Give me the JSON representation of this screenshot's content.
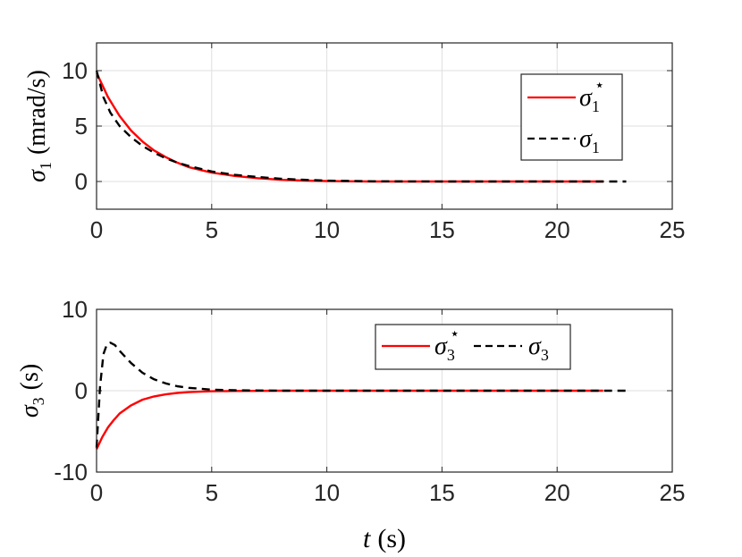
{
  "chart_data": [
    {
      "type": "line",
      "ylabel": "σ₁ (mrad/s)",
      "xlim": [
        0,
        25
      ],
      "ylim": [
        -2.5,
        12.5
      ],
      "xticks": [
        "0",
        "5",
        "10",
        "15",
        "20",
        "25"
      ],
      "yticks": [
        "0",
        "5",
        "10"
      ],
      "grid": true,
      "legend_placement": "top-right",
      "series": [
        {
          "name": "σ₁*",
          "color": "#ff0000",
          "style": "solid",
          "x": [
            0,
            0.5,
            1,
            1.5,
            2,
            2.5,
            3,
            3.5,
            4,
            5,
            6,
            7,
            8,
            9,
            10,
            12,
            15,
            18,
            22
          ],
          "y": [
            9.8,
            7.6,
            5.9,
            4.6,
            3.6,
            2.8,
            2.2,
            1.7,
            1.3,
            0.8,
            0.5,
            0.3,
            0.15,
            0.08,
            0.04,
            0.0,
            0.0,
            0.0,
            0.0
          ]
        },
        {
          "name": "σ₁",
          "color": "#000000",
          "style": "dashed",
          "x": [
            0,
            0.3,
            0.6,
            1,
            1.5,
            2,
            2.5,
            3,
            3.5,
            4,
            5,
            6,
            7,
            8,
            9,
            10,
            12,
            15,
            18,
            23
          ],
          "y": [
            10.0,
            7.6,
            6.2,
            5.0,
            4.0,
            3.2,
            2.6,
            2.1,
            1.7,
            1.4,
            0.9,
            0.6,
            0.4,
            0.25,
            0.15,
            0.08,
            0.02,
            0.0,
            0.0,
            0.0
          ]
        }
      ]
    },
    {
      "type": "line",
      "ylabel": "σ₃ (s)",
      "xlabel": "t (s)",
      "xlim": [
        0,
        25
      ],
      "ylim": [
        -10,
        10
      ],
      "xticks": [
        "0",
        "5",
        "10",
        "15",
        "20",
        "25"
      ],
      "yticks": [
        "-10",
        "0",
        "10"
      ],
      "grid": true,
      "legend_placement": "top-right",
      "legend_orientation": "horizontal",
      "series": [
        {
          "name": "σ₃*",
          "color": "#ff0000",
          "style": "solid",
          "x": [
            0,
            0.25,
            0.5,
            0.75,
            1,
            1.5,
            2,
            2.5,
            3,
            3.5,
            4,
            5,
            6,
            8,
            10,
            15,
            22
          ],
          "y": [
            -7.2,
            -5.7,
            -4.5,
            -3.6,
            -2.8,
            -1.8,
            -1.1,
            -0.7,
            -0.45,
            -0.28,
            -0.18,
            -0.07,
            -0.03,
            0.0,
            0.0,
            0.0,
            0.0
          ]
        },
        {
          "name": "σ₃",
          "color": "#000000",
          "style": "dashed",
          "x": [
            0,
            0.15,
            0.3,
            0.45,
            0.6,
            0.8,
            1,
            1.5,
            2,
            2.5,
            3,
            3.5,
            4,
            5,
            6,
            8,
            10,
            15,
            23
          ],
          "y": [
            -7.0,
            0.5,
            4.5,
            5.7,
            5.9,
            5.6,
            4.9,
            3.4,
            2.2,
            1.4,
            0.9,
            0.55,
            0.35,
            0.13,
            0.05,
            0.0,
            0.0,
            0.0,
            0.0
          ]
        }
      ]
    }
  ],
  "labels": {
    "top_ylabel_sym": "σ",
    "top_ylabel_sub": "1",
    "top_ylabel_unit": "(mrad/s)",
    "bottom_ylabel_sym": "σ",
    "bottom_ylabel_sub": "3",
    "bottom_ylabel_unit": "(s)",
    "xlabel_sym": "t",
    "xlabel_unit": "(s)"
  },
  "legend": {
    "top": [
      {
        "sym": "σ",
        "sub": "1",
        "sup": "⋆"
      },
      {
        "sym": "σ",
        "sub": "1",
        "sup": ""
      }
    ],
    "bottom": [
      {
        "sym": "σ",
        "sub": "3",
        "sup": "⋆"
      },
      {
        "sym": "σ",
        "sub": "3",
        "sup": ""
      }
    ]
  }
}
